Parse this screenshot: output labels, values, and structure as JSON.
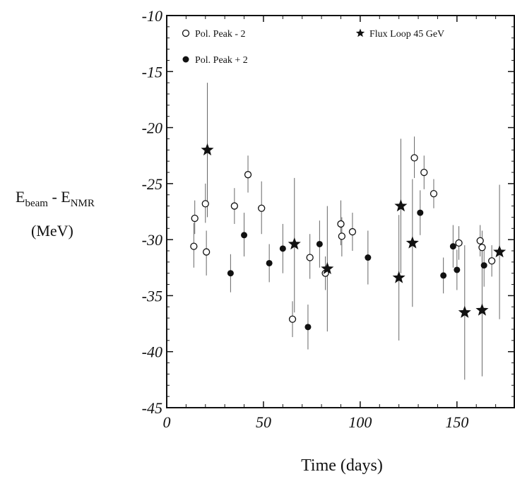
{
  "chart_data": {
    "type": "scatter",
    "title": "",
    "xlabel": "Time (days)",
    "ylabel": {
      "line1_main": "E",
      "line1_sub1": "beam",
      "line1_mid": " - E",
      "line1_sub2": "NMR",
      "line2": "(MeV)"
    },
    "xlim": [
      0,
      180
    ],
    "ylim": [
      -45,
      -10
    ],
    "xticks": [
      0,
      50,
      100,
      150
    ],
    "xtick_labels": [
      "0",
      "50",
      "100",
      "150"
    ],
    "yticks": [
      -10,
      -15,
      -20,
      -25,
      -30,
      -35,
      -40,
      -45
    ],
    "ytick_labels": [
      "-10",
      "-15",
      "-20",
      "-25",
      "-30",
      "-35",
      "-40",
      "-45"
    ],
    "grid": false,
    "legend_position": "top",
    "series": [
      {
        "name": "Pol. Peak - 2",
        "marker": "open-circle",
        "points": [
          {
            "x": 14,
            "y": -30.6,
            "lo": -32.5,
            "hi": -28.5
          },
          {
            "x": 14.5,
            "y": -28.1,
            "lo": -29.5,
            "hi": -26.5
          },
          {
            "x": 20,
            "y": -26.8,
            "lo": -28.5,
            "hi": -25.0
          },
          {
            "x": 20.5,
            "y": -31.1,
            "lo": -33.2,
            "hi": -29.2
          },
          {
            "x": 35,
            "y": -27.0,
            "lo": -28.6,
            "hi": -25.4
          },
          {
            "x": 42,
            "y": -24.2,
            "lo": -25.8,
            "hi": -22.5
          },
          {
            "x": 49,
            "y": -27.2,
            "lo": -29.5,
            "hi": -24.8
          },
          {
            "x": 65,
            "y": -37.1,
            "lo": -38.7,
            "hi": -35.5
          },
          {
            "x": 74,
            "y": -31.6,
            "lo": -33.5,
            "hi": -29.5
          },
          {
            "x": 82,
            "y": -33.0,
            "lo": -34.5,
            "hi": -31.5
          },
          {
            "x": 90,
            "y": -28.6,
            "lo": -30.5,
            "hi": -26.5
          },
          {
            "x": 90.5,
            "y": -29.7,
            "lo": -31.5,
            "hi": -28.0
          },
          {
            "x": 96,
            "y": -29.3,
            "lo": -31.0,
            "hi": -27.6
          },
          {
            "x": 128,
            "y": -22.7,
            "lo": -24.5,
            "hi": -20.8
          },
          {
            "x": 133,
            "y": -24.0,
            "lo": -25.5,
            "hi": -22.5
          },
          {
            "x": 138,
            "y": -25.9,
            "lo": -27.2,
            "hi": -24.6
          },
          {
            "x": 151,
            "y": -30.3,
            "lo": -31.8,
            "hi": -28.8
          },
          {
            "x": 162,
            "y": -30.1,
            "lo": -31.5,
            "hi": -28.7
          },
          {
            "x": 163,
            "y": -30.7,
            "lo": -32.2,
            "hi": -29.2
          },
          {
            "x": 168,
            "y": -31.9,
            "lo": -33.3,
            "hi": -30.5
          }
        ]
      },
      {
        "name": "Pol. Peak + 2",
        "marker": "filled-circle",
        "points": [
          {
            "x": 33,
            "y": -33.0,
            "lo": -34.7,
            "hi": -31.3
          },
          {
            "x": 40,
            "y": -29.6,
            "lo": -31.5,
            "hi": -27.6
          },
          {
            "x": 53,
            "y": -32.1,
            "lo": -33.8,
            "hi": -30.4
          },
          {
            "x": 60,
            "y": -30.8,
            "lo": -33.0,
            "hi": -28.6
          },
          {
            "x": 73,
            "y": -37.8,
            "lo": -39.8,
            "hi": -35.8
          },
          {
            "x": 79,
            "y": -30.4,
            "lo": -32.5,
            "hi": -28.3
          },
          {
            "x": 104,
            "y": -31.6,
            "lo": -34.0,
            "hi": -29.2
          },
          {
            "x": 131,
            "y": -27.6,
            "lo": -29.6,
            "hi": -25.6
          },
          {
            "x": 143,
            "y": -33.2,
            "lo": -34.8,
            "hi": -31.6
          },
          {
            "x": 148,
            "y": -30.6,
            "lo": -32.5,
            "hi": -28.7
          },
          {
            "x": 150,
            "y": -32.7,
            "lo": -34.5,
            "hi": -30.9
          },
          {
            "x": 164,
            "y": -32.3,
            "lo": -34.2,
            "hi": -30.4
          }
        ]
      },
      {
        "name": "Flux Loop 45 GeV",
        "marker": "star",
        "points": [
          {
            "x": 21,
            "y": -22.0,
            "lo": -28.0,
            "hi": -16.0
          },
          {
            "x": 66,
            "y": -30.4,
            "lo": -36.5,
            "hi": -24.5
          },
          {
            "x": 83,
            "y": -32.6,
            "lo": -38.2,
            "hi": -27.0
          },
          {
            "x": 120,
            "y": -33.4,
            "lo": -39.0,
            "hi": -27.8
          },
          {
            "x": 121,
            "y": -27.0,
            "lo": -33.0,
            "hi": -21.0
          },
          {
            "x": 127,
            "y": -30.3,
            "lo": -36.0,
            "hi": -24.6
          },
          {
            "x": 154,
            "y": -36.5,
            "lo": -42.5,
            "hi": -30.5
          },
          {
            "x": 163,
            "y": -36.3,
            "lo": -42.2,
            "hi": -30.4
          },
          {
            "x": 172,
            "y": -31.1,
            "lo": -37.1,
            "hi": -25.1
          }
        ]
      }
    ]
  }
}
